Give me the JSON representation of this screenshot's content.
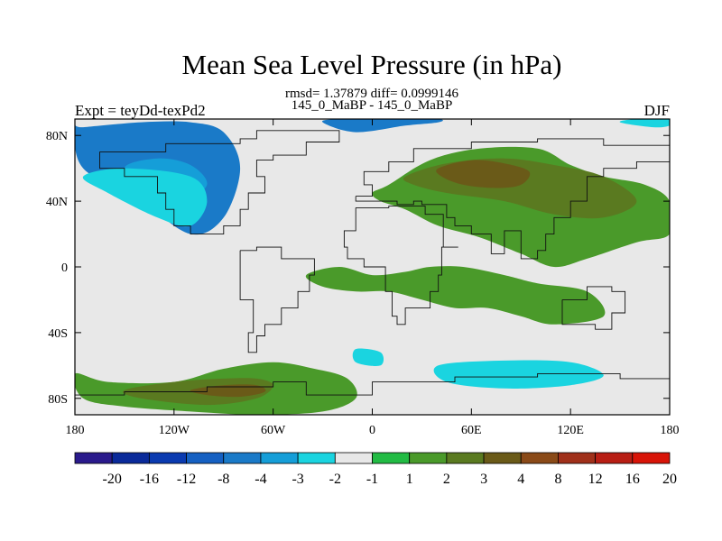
{
  "chart_data": {
    "type": "filled-contour-map",
    "title": "Mean Sea Level Pressure (in hPa)",
    "stats_label": "rmsd= 1.37879 diff= 0.0999146",
    "left_label": "Expt = teyDd-texPd2",
    "center_label": "145_0_MaBP - 145_0_MaBP",
    "right_label": "DJF",
    "x_ticks": [
      {
        "value": -180,
        "label": "180"
      },
      {
        "value": -120,
        "label": "120W"
      },
      {
        "value": -60,
        "label": "60W"
      },
      {
        "value": 0,
        "label": "0"
      },
      {
        "value": 60,
        "label": "60E"
      },
      {
        "value": 120,
        "label": "120E"
      },
      {
        "value": 180,
        "label": "180"
      }
    ],
    "y_ticks": [
      {
        "value": 80,
        "label": "80N"
      },
      {
        "value": 40,
        "label": "40N"
      },
      {
        "value": 0,
        "label": "0"
      },
      {
        "value": -40,
        "label": "40S"
      },
      {
        "value": -80,
        "label": "80S"
      }
    ],
    "xlim": [
      -180,
      180
    ],
    "ylim": [
      -90,
      90
    ],
    "colorbar": {
      "colors": [
        "#2a1a8c",
        "#0a2a9a",
        "#0a3ab0",
        "#1560c2",
        "#1a7ac8",
        "#159ed8",
        "#1ad4e0",
        "#e8e8e8",
        "#22bb44",
        "#4a9a2a",
        "#5a7a20",
        "#6a5a18",
        "#8a4a18",
        "#a0301a",
        "#b81e14",
        "#d81408"
      ],
      "labels": [
        "-20",
        "-16",
        "-12",
        "-8",
        "-4",
        "-3",
        "-2",
        "-1",
        "1",
        "2",
        "3",
        "4",
        "8",
        "12",
        "16",
        "20"
      ]
    },
    "regions": [
      {
        "level": "-4",
        "lon": [
          -180,
          -175,
          -140,
          -110,
          -90,
          -80,
          -90,
          -110,
          -140,
          -175
        ],
        "lat": [
          85,
          60,
          40,
          20,
          30,
          60,
          82,
          88,
          88,
          85
        ]
      },
      {
        "level": "-4",
        "lon": [
          -30,
          -10,
          20,
          40,
          40,
          15,
          -20
        ],
        "lat": [
          88,
          82,
          86,
          88,
          90,
          90,
          90
        ]
      },
      {
        "level": "-3",
        "lon": [
          -150,
          -130,
          -115,
          -100,
          -110,
          -130
        ],
        "lat": [
          60,
          45,
          40,
          50,
          62,
          66
        ]
      },
      {
        "level": "-2",
        "lon": [
          -175,
          -160,
          -130,
          -110,
          -100,
          -110,
          -150
        ],
        "lat": [
          55,
          45,
          30,
          25,
          40,
          55,
          60
        ]
      },
      {
        "level": "-2",
        "lon": [
          150,
          170,
          180,
          180,
          160
        ],
        "lat": [
          88,
          85,
          86,
          90,
          90
        ]
      },
      {
        "level": "-2",
        "lon": [
          -10,
          5,
          5,
          -10
        ],
        "lat": [
          -50,
          -52,
          -60,
          -58
        ]
      },
      {
        "level": "-2",
        "lon": [
          40,
          80,
          120,
          140,
          120,
          80,
          45
        ],
        "lat": [
          -60,
          -57,
          -58,
          -66,
          -72,
          -74,
          -70
        ]
      },
      {
        "level": "2",
        "lon": [
          10,
          35,
          65,
          100,
          120,
          140,
          165,
          180,
          180,
          160,
          130,
          110,
          90,
          65,
          40,
          20,
          5,
          0
        ],
        "lat": [
          50,
          65,
          72,
          72,
          62,
          55,
          50,
          40,
          20,
          15,
          5,
          0,
          8,
          18,
          25,
          35,
          40,
          45
        ]
      },
      {
        "level": "2",
        "lon": [
          -40,
          -20,
          0,
          20,
          35,
          55,
          80,
          100,
          130,
          140,
          110,
          90,
          70,
          50,
          30,
          10,
          -10,
          -30
        ],
        "lat": [
          -5,
          0,
          -5,
          -3,
          0,
          0,
          -5,
          -10,
          -15,
          -30,
          -35,
          -30,
          -25,
          -25,
          -20,
          -15,
          -15,
          -12
        ]
      },
      {
        "level": "2",
        "lon": [
          -180,
          -160,
          -120,
          -90,
          -60,
          -35,
          -15,
          -10,
          -30,
          -70,
          -110,
          -150,
          -175
        ],
        "lat": [
          -65,
          -70,
          -70,
          -62,
          -58,
          -62,
          -68,
          -80,
          -88,
          -90,
          -88,
          -85,
          -80
        ]
      },
      {
        "level": "3",
        "lon": [
          20,
          45,
          80,
          110,
          140,
          160,
          140,
          110,
          80,
          45,
          25
        ],
        "lat": [
          55,
          63,
          66,
          62,
          55,
          40,
          30,
          32,
          40,
          45,
          50
        ]
      },
      {
        "level": "3",
        "lon": [
          -150,
          -120,
          -90,
          -70,
          -60,
          -70,
          -100,
          -140
        ],
        "lat": [
          -75,
          -70,
          -68,
          -68,
          -72,
          -80,
          -84,
          -80
        ]
      },
      {
        "level": "4",
        "lon": [
          40,
          60,
          80,
          95,
          90,
          75,
          55,
          42
        ],
        "lat": [
          60,
          65,
          63,
          58,
          50,
          48,
          50,
          55
        ]
      },
      {
        "level": "4",
        "lon": [
          -110,
          -90,
          -70,
          -65,
          -80,
          -100
        ],
        "lat": [
          -75,
          -72,
          -72,
          -76,
          -79,
          -78
        ]
      }
    ],
    "coastlines": [
      [
        [
          -165,
          70
        ],
        [
          -140,
          70
        ],
        [
          -125,
          75
        ],
        [
          -95,
          75
        ],
        [
          -80,
          78
        ],
        [
          -70,
          83
        ],
        [
          -30,
          83
        ],
        [
          -20,
          76
        ],
        [
          -40,
          68
        ],
        [
          -60,
          65
        ],
        [
          -70,
          55
        ],
        [
          -65,
          45
        ],
        [
          -75,
          35
        ],
        [
          -80,
          25
        ],
        [
          -90,
          20
        ],
        [
          -105,
          20
        ],
        [
          -110,
          25
        ],
        [
          -120,
          35
        ],
        [
          -125,
          45
        ],
        [
          -130,
          55
        ],
        [
          -150,
          60
        ],
        [
          -165,
          62
        ],
        [
          -165,
          70
        ]
      ],
      [
        [
          -80,
          10
        ],
        [
          -70,
          12
        ],
        [
          -55,
          5
        ],
        [
          -35,
          -5
        ],
        [
          -38,
          -15
        ],
        [
          -45,
          -25
        ],
        [
          -55,
          -35
        ],
        [
          -65,
          -42
        ],
        [
          -70,
          -52
        ],
        [
          -75,
          -40
        ],
        [
          -72,
          -20
        ],
        [
          -80,
          -5
        ],
        [
          -80,
          10
        ]
      ],
      [
        [
          -10,
          36
        ],
        [
          10,
          37
        ],
        [
          32,
          32
        ],
        [
          43,
          12
        ],
        [
          52,
          12
        ],
        [
          42,
          -5
        ],
        [
          40,
          -15
        ],
        [
          35,
          -25
        ],
        [
          20,
          -35
        ],
        [
          15,
          -30
        ],
        [
          12,
          -15
        ],
        [
          8,
          0
        ],
        [
          -5,
          5
        ],
        [
          -15,
          12
        ],
        [
          -17,
          22
        ],
        [
          -10,
          36
        ]
      ],
      [
        [
          -10,
          43
        ],
        [
          0,
          50
        ],
        [
          -5,
          58
        ],
        [
          10,
          64
        ],
        [
          25,
          72
        ],
        [
          60,
          76
        ],
        [
          100,
          78
        ],
        [
          140,
          74
        ],
        [
          180,
          70
        ],
        [
          180,
          64
        ],
        [
          160,
          60
        ],
        [
          140,
          55
        ],
        [
          130,
          40
        ],
        [
          120,
          30
        ],
        [
          110,
          20
        ],
        [
          105,
          10
        ],
        [
          100,
          5
        ],
        [
          90,
          22
        ],
        [
          80,
          8
        ],
        [
          72,
          20
        ],
        [
          60,
          25
        ],
        [
          50,
          30
        ],
        [
          45,
          38
        ],
        [
          30,
          40
        ],
        [
          25,
          38
        ],
        [
          15,
          40
        ],
        [
          0,
          40
        ],
        [
          -10,
          43
        ]
      ],
      [
        [
          115,
          -20
        ],
        [
          130,
          -12
        ],
        [
          145,
          -15
        ],
        [
          153,
          -28
        ],
        [
          145,
          -38
        ],
        [
          135,
          -35
        ],
        [
          115,
          -33
        ],
        [
          115,
          -20
        ]
      ],
      [
        [
          -180,
          -78
        ],
        [
          -150,
          -76
        ],
        [
          -100,
          -73
        ],
        [
          -60,
          -70
        ],
        [
          -40,
          -78
        ],
        [
          0,
          -70
        ],
        [
          50,
          -67
        ],
        [
          100,
          -65
        ],
        [
          150,
          -68
        ],
        [
          180,
          -78
        ]
      ]
    ]
  }
}
